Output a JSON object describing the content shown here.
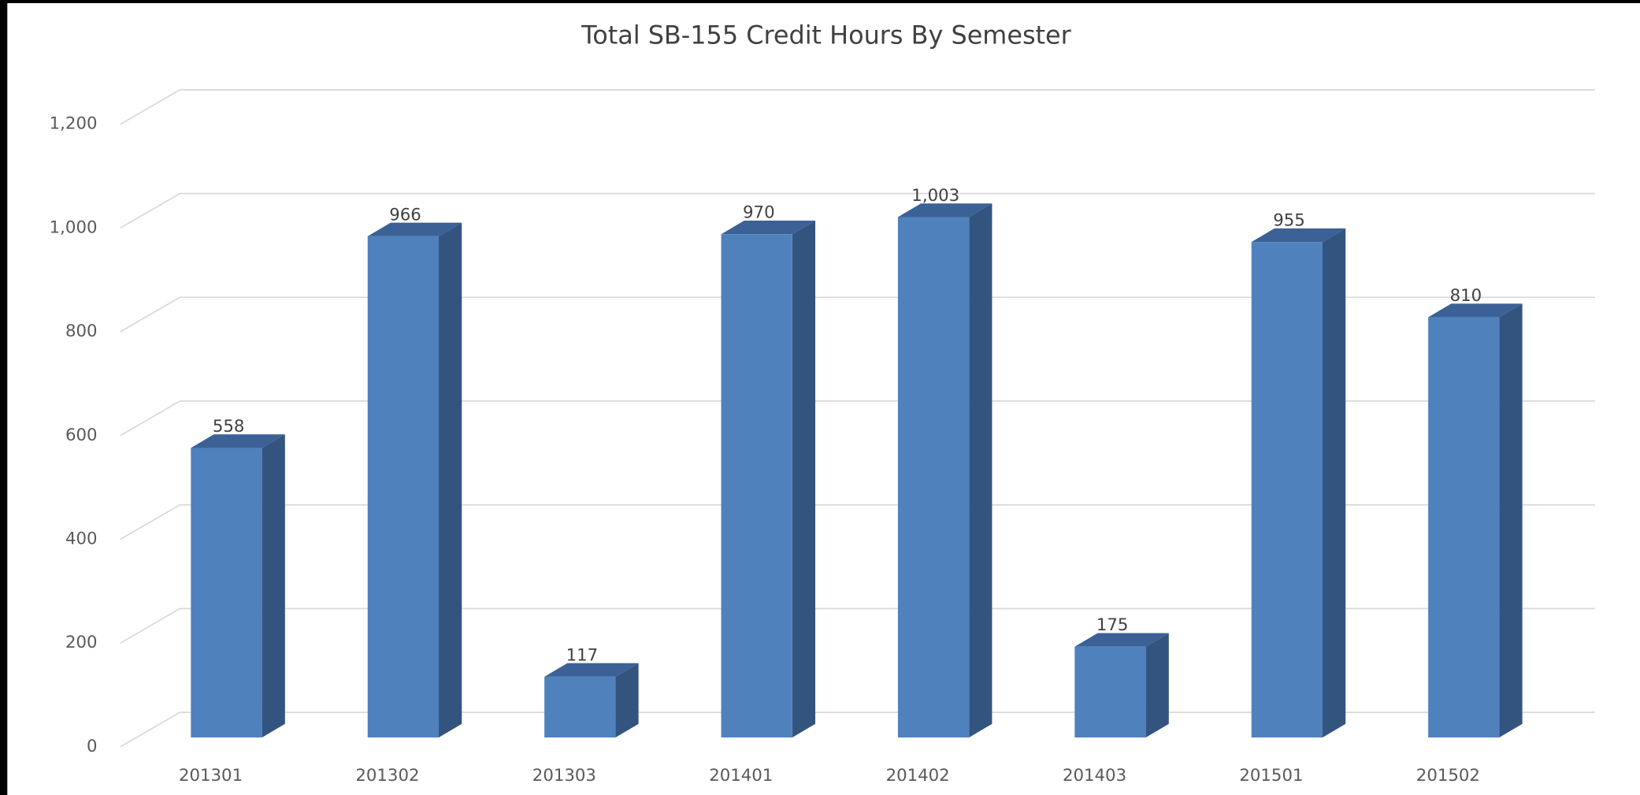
{
  "chart_data": {
    "type": "bar3d",
    "title": "Total SB-155 Credit Hours By Semester",
    "categories": [
      "201301",
      "201302",
      "201303",
      "201401",
      "201402",
      "201403",
      "201501",
      "201502"
    ],
    "values": [
      558,
      966,
      117,
      970,
      1003,
      175,
      955,
      810
    ],
    "value_labels": [
      "558",
      "966",
      "117",
      "970",
      "1,003",
      "175",
      "955",
      "810"
    ],
    "color": "#4f81bd",
    "ylim": [
      0,
      1200
    ],
    "yticks": [
      0,
      200,
      400,
      600,
      800,
      {
        "value": 1000,
        "label": "1,000"
      },
      {
        "value": 1200,
        "label": "1,200"
      }
    ],
    "grid": true
  }
}
